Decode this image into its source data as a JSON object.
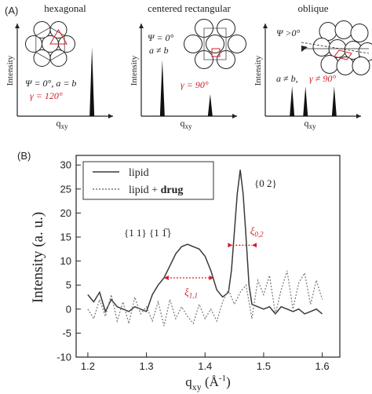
{
  "panel_a": {
    "label": "(A)",
    "ylabel": "Intensity",
    "xlabel": "q",
    "xlabel_sub": "xy",
    "subpanels": [
      {
        "title": "hexagonal",
        "line1": "Ψ = 0°, a = b",
        "gamma": "γ = 120°",
        "peaks": [
          0.78
        ],
        "lattice": "hexagonal"
      },
      {
        "title": "centered rectangular",
        "line1": "Ψ = 0°",
        "line2": "a ≠ b",
        "gamma": "γ = 90°",
        "peaks": [
          0.22,
          0.72
        ],
        "lattice": "centered-rectangular"
      },
      {
        "title": "oblique",
        "line1": "Ψ >0°",
        "line2": "a ≠ b,",
        "gamma": "γ ≠ 90°",
        "peaks": [
          0.28,
          0.42,
          0.72
        ],
        "lattice": "oblique"
      }
    ]
  },
  "panel_b": {
    "label": "(B)",
    "annot_11": "{1 1}  {1 1̅}",
    "annot_02": "{0 2}",
    "xi11": "ξ",
    "xi11_sub": "1,1",
    "xi02": "ξ",
    "xi02_sub": "0,2"
  },
  "colors": {
    "accent_red": "#d0202a",
    "lipid": "#3a3a3a",
    "lipid_drug": "#777777"
  },
  "chart_data": {
    "type": "line",
    "xlabel": "q",
    "xlabel_sub": "xy",
    "xlabel_unit": "(Å",
    "xlabel_unit_sup": "-1",
    "xlabel_unit_close": ")",
    "ylabel": "Intensity (a. u.)",
    "xlim": [
      1.18,
      1.63
    ],
    "ylim": [
      -10,
      32
    ],
    "xticks": [
      "1.2",
      "1.3",
      "1.4",
      "1.5",
      "1.6"
    ],
    "xtick_values": [
      1.2,
      1.3,
      1.4,
      1.5,
      1.6
    ],
    "yticks": [
      "-10",
      "-5",
      "0",
      "5",
      "10",
      "15",
      "20",
      "25",
      "30"
    ],
    "ytick_values": [
      -10,
      -5,
      0,
      5,
      10,
      15,
      20,
      25,
      30
    ],
    "legend_position": "top-left",
    "series": [
      {
        "name": "lipid",
        "style": "solid",
        "x": [
          1.2,
          1.21,
          1.22,
          1.23,
          1.24,
          1.25,
          1.26,
          1.27,
          1.28,
          1.29,
          1.3,
          1.31,
          1.32,
          1.33,
          1.34,
          1.35,
          1.36,
          1.37,
          1.38,
          1.39,
          1.4,
          1.41,
          1.42,
          1.43,
          1.44,
          1.445,
          1.45,
          1.455,
          1.46,
          1.465,
          1.47,
          1.475,
          1.48,
          1.49,
          1.5,
          1.51,
          1.52,
          1.53,
          1.54,
          1.55,
          1.56,
          1.57,
          1.58,
          1.59,
          1.6
        ],
        "values": [
          3.0,
          1.5,
          3.5,
          -0.5,
          2.0,
          0.5,
          0.0,
          -0.5,
          0.5,
          0.0,
          -0.5,
          3.0,
          5.0,
          6.5,
          9.0,
          11.5,
          13.0,
          13.5,
          13.0,
          12.5,
          11.0,
          8.0,
          4.0,
          2.5,
          3.5,
          8.0,
          16.0,
          24.0,
          29.0,
          24.0,
          15.0,
          5.0,
          1.0,
          0.5,
          0.0,
          0.5,
          -1.0,
          0.5,
          0.0,
          -0.5,
          0.0,
          -1.0,
          -0.5,
          0.0,
          -1.0
        ]
      },
      {
        "name": "lipid + drug",
        "name_bold": "drug",
        "style": "dotted",
        "x": [
          1.2,
          1.21,
          1.22,
          1.23,
          1.24,
          1.25,
          1.26,
          1.27,
          1.28,
          1.29,
          1.3,
          1.31,
          1.32,
          1.33,
          1.34,
          1.35,
          1.36,
          1.37,
          1.38,
          1.39,
          1.4,
          1.41,
          1.42,
          1.43,
          1.44,
          1.45,
          1.46,
          1.47,
          1.48,
          1.49,
          1.5,
          1.51,
          1.52,
          1.53,
          1.54,
          1.55,
          1.56,
          1.57,
          1.58,
          1.59,
          1.6
        ],
        "values": [
          0.0,
          -2.0,
          2.0,
          -1.5,
          3.0,
          -2.5,
          1.5,
          -3.0,
          2.5,
          -1.0,
          0.5,
          -2.5,
          1.5,
          -3.5,
          2.0,
          -2.0,
          0.5,
          -1.5,
          -3.0,
          1.0,
          -2.0,
          0.0,
          -2.5,
          1.5,
          4.0,
          1.0,
          3.5,
          5.0,
          -2.0,
          6.0,
          3.0,
          7.0,
          -1.0,
          4.0,
          8.0,
          0.0,
          5.5,
          7.5,
          1.0,
          6.0,
          2.0
        ]
      }
    ]
  }
}
